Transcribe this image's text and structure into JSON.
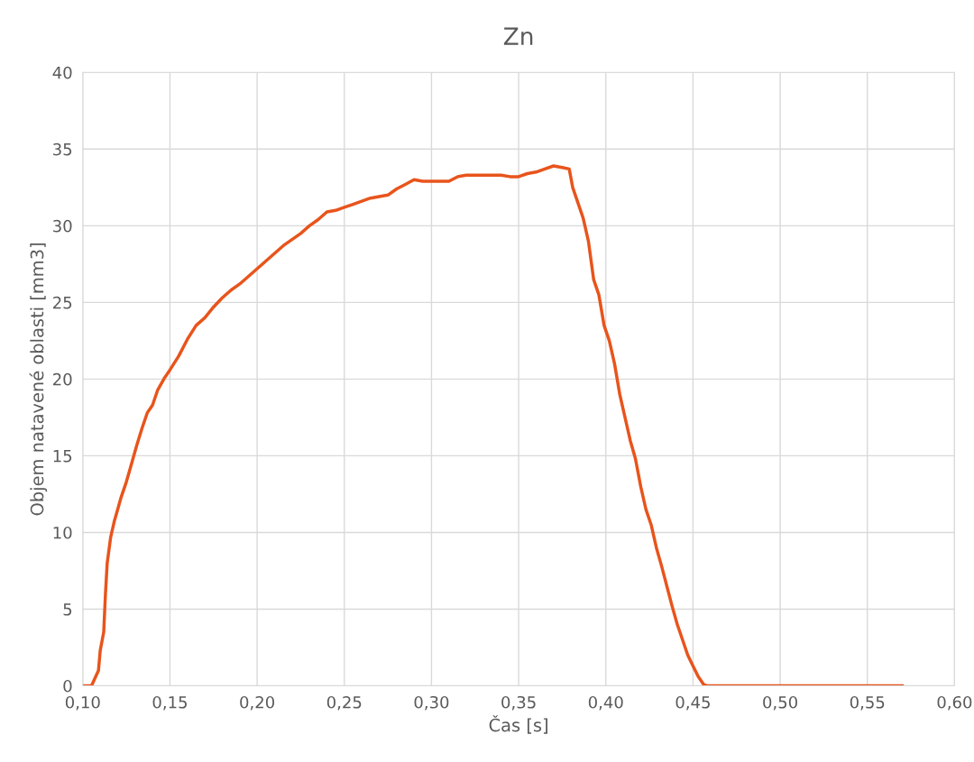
{
  "chart_data": {
    "type": "line",
    "title": "Zn",
    "xlabel": "Čas [s]",
    "ylabel": "Objem natavené oblasti [mm3]",
    "xlim": [
      0.1,
      0.6
    ],
    "ylim": [
      0,
      40
    ],
    "xticks": [
      {
        "value": 0.1,
        "label": "0,10"
      },
      {
        "value": 0.15,
        "label": "0,15"
      },
      {
        "value": 0.2,
        "label": "0,20"
      },
      {
        "value": 0.25,
        "label": "0,25"
      },
      {
        "value": 0.3,
        "label": "0,30"
      },
      {
        "value": 0.35,
        "label": "0,35"
      },
      {
        "value": 0.4,
        "label": "0,40"
      },
      {
        "value": 0.45,
        "label": "0,45"
      },
      {
        "value": 0.5,
        "label": "0,50"
      },
      {
        "value": 0.55,
        "label": "0,55"
      },
      {
        "value": 0.6,
        "label": "0,60"
      }
    ],
    "yticks": [
      0,
      5,
      10,
      15,
      20,
      25,
      30,
      35,
      40
    ],
    "grid": true,
    "marker": "none",
    "line_style": "solid",
    "series": [
      {
        "color": "#e8541c",
        "x": [
          0.1,
          0.105,
          0.107,
          0.109,
          0.11,
          0.112,
          0.113,
          0.114,
          0.116,
          0.118,
          0.12,
          0.122,
          0.125,
          0.128,
          0.131,
          0.134,
          0.137,
          0.14,
          0.143,
          0.147,
          0.15,
          0.155,
          0.16,
          0.165,
          0.17,
          0.175,
          0.18,
          0.185,
          0.19,
          0.195,
          0.2,
          0.205,
          0.21,
          0.215,
          0.22,
          0.225,
          0.23,
          0.235,
          0.24,
          0.245,
          0.25,
          0.255,
          0.26,
          0.265,
          0.27,
          0.275,
          0.28,
          0.285,
          0.29,
          0.295,
          0.3,
          0.31,
          0.315,
          0.32,
          0.33,
          0.34,
          0.345,
          0.35,
          0.355,
          0.36,
          0.365,
          0.37,
          0.375,
          0.379,
          0.381,
          0.384,
          0.387,
          0.39,
          0.393,
          0.396,
          0.399,
          0.402,
          0.405,
          0.408,
          0.411,
          0.414,
          0.417,
          0.42,
          0.423,
          0.426,
          0.429,
          0.432,
          0.435,
          0.438,
          0.441,
          0.444,
          0.447,
          0.45,
          0.453,
          0.456,
          0.458,
          0.57
        ],
        "values": [
          0,
          0,
          0.5,
          1,
          2.3,
          3.5,
          6,
          8,
          9.7,
          10.7,
          11.5,
          12.3,
          13.3,
          14.5,
          15.7,
          16.8,
          17.8,
          18.3,
          19.3,
          20.1,
          20.6,
          21.5,
          22.6,
          23.5,
          24,
          24.7,
          25.3,
          25.8,
          26.2,
          26.7,
          27.2,
          27.7,
          28.2,
          28.7,
          29.1,
          29.5,
          30,
          30.4,
          30.9,
          31,
          31.2,
          31.4,
          31.6,
          31.8,
          31.9,
          32,
          32.4,
          32.7,
          33,
          32.9,
          32.9,
          32.9,
          33.2,
          33.3,
          33.3,
          33.3,
          33.2,
          33.2,
          33.4,
          33.5,
          33.7,
          33.9,
          33.8,
          33.7,
          32.5,
          31.5,
          30.5,
          29,
          26.5,
          25.5,
          23.5,
          22.5,
          21,
          19,
          17.5,
          16,
          14.8,
          13,
          11.5,
          10.5,
          9,
          7.8,
          6.5,
          5.2,
          4,
          3,
          2,
          1.3,
          0.6,
          0.1,
          0,
          0
        ]
      }
    ]
  }
}
